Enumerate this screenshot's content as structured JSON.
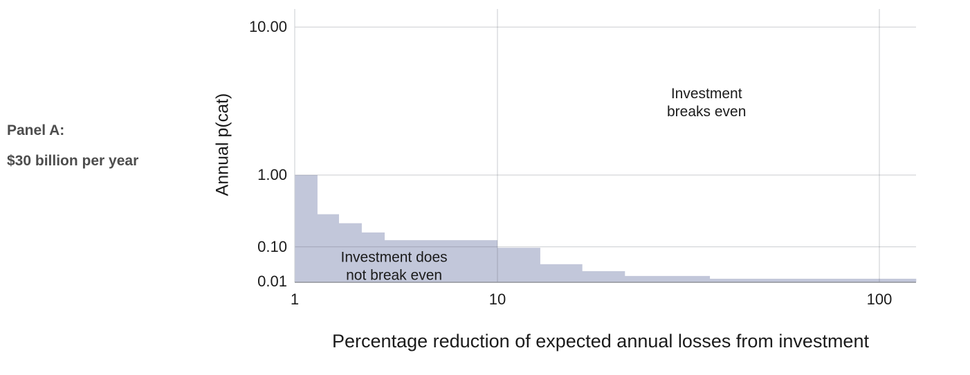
{
  "panel_label": {
    "line1": "Panel A:",
    "line2": "$30 billion per year"
  },
  "chart_data": {
    "type": "area",
    "subtype": "step-area",
    "title": "",
    "xlabel": "Percentage reduction of expected annual losses from investment",
    "ylabel": "Annual p(cat)",
    "x_axis": {
      "scale": "compressed log (decade spacing grows to the right)",
      "range": [
        1,
        117.5
      ],
      "ticks": [
        {
          "value": 1,
          "label": "1"
        },
        {
          "value": 10,
          "label": "10"
        },
        {
          "value": 100,
          "label": "100"
        }
      ]
    },
    "y_axis": {
      "scale": "compressed log (decade spacing shrinks downward)",
      "range": [
        0.0099,
        12
      ],
      "ticks": [
        {
          "value": 10,
          "label": "10.00"
        },
        {
          "value": 1,
          "label": "1.00"
        },
        {
          "value": 0.1,
          "label": "0.10"
        },
        {
          "value": 0.01,
          "label": "0.01"
        }
      ]
    },
    "grid": {
      "h_lines": [
        10,
        1,
        0.1
      ],
      "v_lines": [
        10,
        100
      ]
    },
    "series": [
      {
        "name": "break-even frontier (shaded region below = investment does not break even)",
        "steps": [
          {
            "x_from": 1,
            "x_to": 1.41,
            "p": 1.0
          },
          {
            "x_from": 1.41,
            "x_to": 1.9,
            "p": 0.35
          },
          {
            "x_from": 1.9,
            "x_to": 2.54,
            "p": 0.26
          },
          {
            "x_from": 2.54,
            "x_to": 3.33,
            "p": 0.185
          },
          {
            "x_from": 3.33,
            "x_to": 10,
            "p": 0.135
          },
          {
            "x_from": 10,
            "x_to": 14.1,
            "p": 0.096
          },
          {
            "x_from": 14.1,
            "x_to": 19.2,
            "p": 0.039
          },
          {
            "x_from": 19.2,
            "x_to": 25.6,
            "p": 0.0243
          },
          {
            "x_from": 25.6,
            "x_to": 42.8,
            "p": 0.0167
          },
          {
            "x_from": 42.8,
            "x_to": 117.5,
            "p": 0.0132
          }
        ]
      }
    ],
    "annotations": [
      {
        "id": "breaks-even",
        "lines": [
          "Investment",
          "breaks even"
        ],
        "x": 42,
        "y": 3.8
      },
      {
        "id": "not-break-even",
        "lines": [
          "Investment does",
          "not break even"
        ],
        "x": 3.7,
        "y": 0.0345
      }
    ],
    "colors": {
      "fill": "#c2c7da",
      "gridline_over_white": "#cdd0d4",
      "axis_line": "#8f9299",
      "left_axis_line": "#caccd1",
      "text": "#1b1b1b",
      "panel_text": "#4d4d4d"
    }
  }
}
